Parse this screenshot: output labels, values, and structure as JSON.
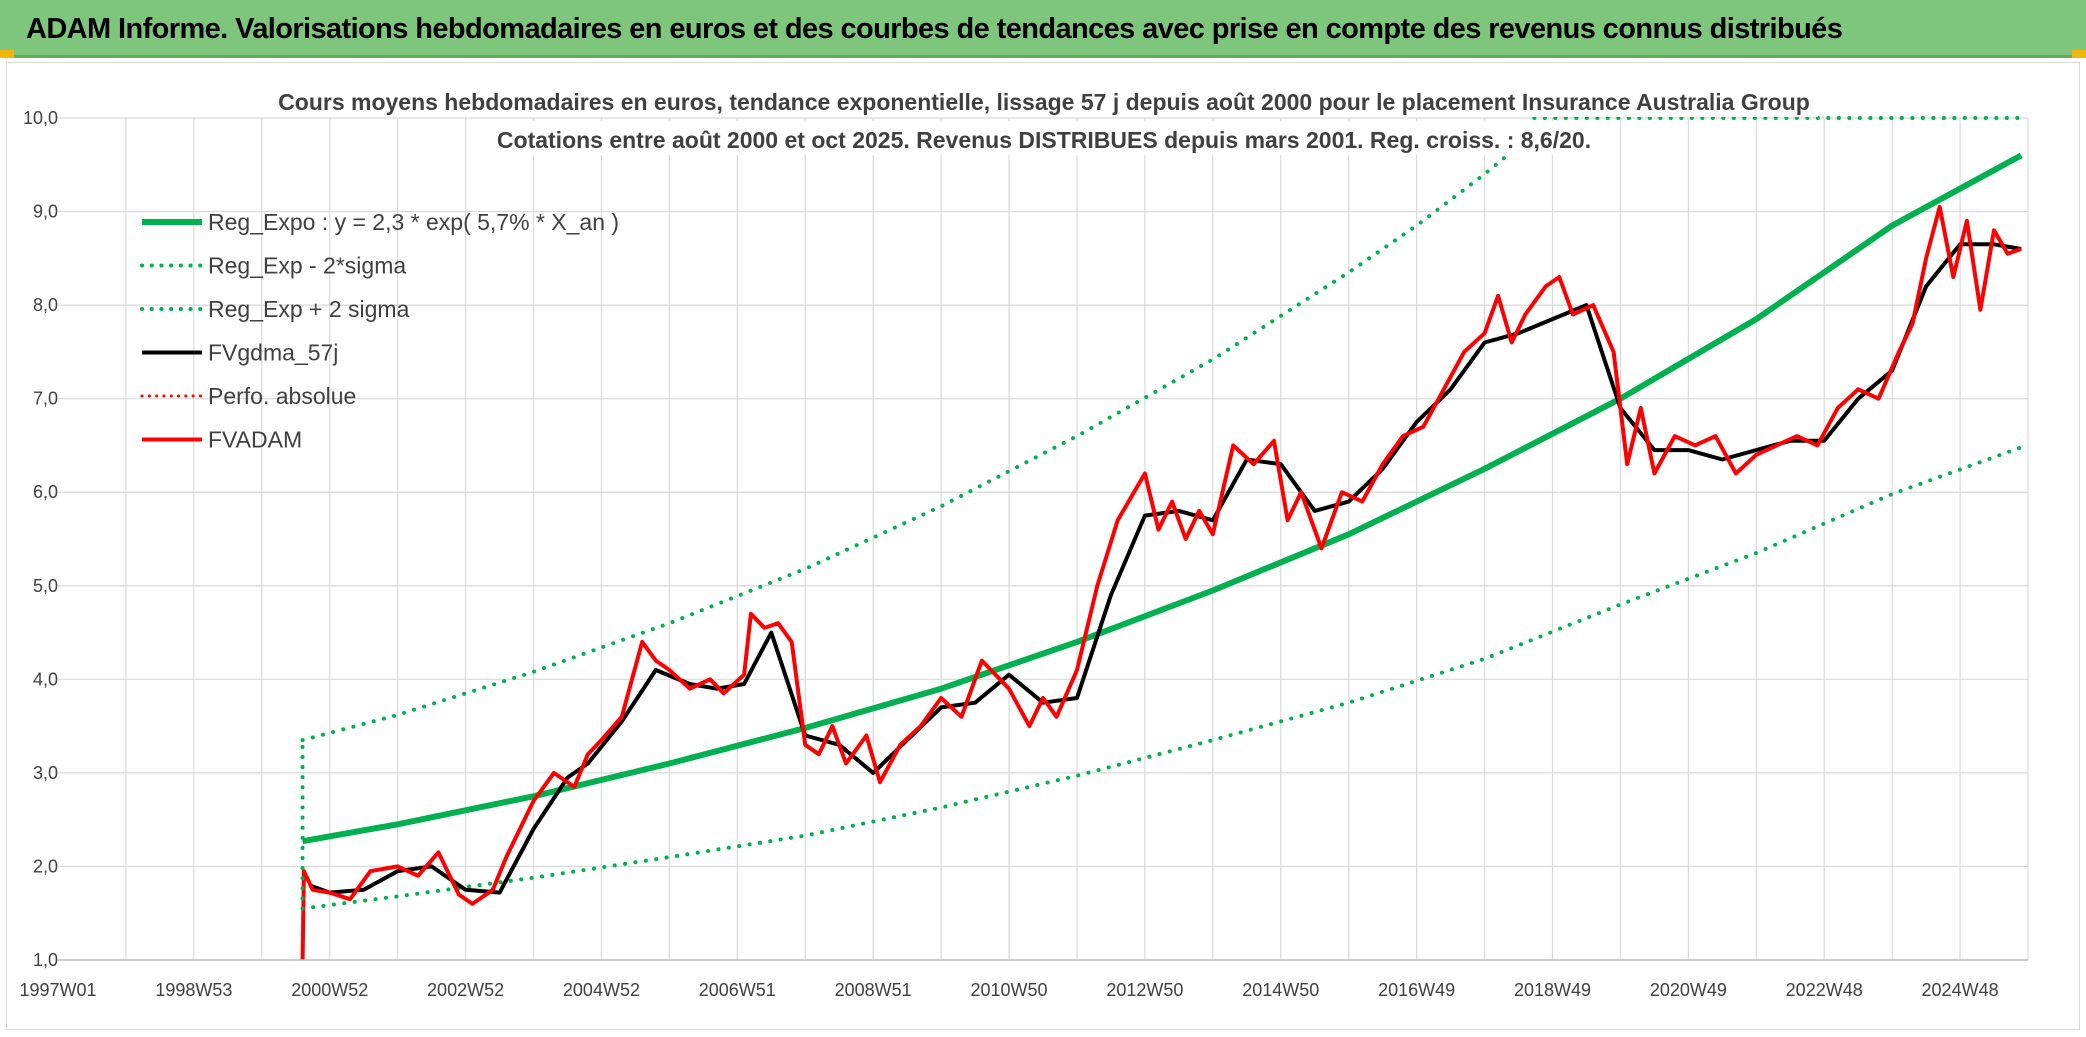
{
  "header": {
    "banner_title": "ADAM Informe. Valorisations hebdomadaires en euros et des courbes de tendances avec prise en compte des revenus connus distribués"
  },
  "colors": {
    "banner_bg": "#7dc67b",
    "reg_green": "#00b050",
    "fvadam_red": "#ff0000",
    "fvgdma_black": "#000000",
    "grid": "#d9d9d9"
  },
  "chart_data": {
    "type": "line",
    "title_lines": [
      "Cours moyens hebdomadaires en euros, tendance exponentielle, lissage 57 j depuis août 2000 pour le placement Insurance Australia Group",
      "Cotations entre août 2000 et oct 2025. Revenus DISTRIBUES depuis mars 2001. Reg. croiss. : 8,6/20."
    ],
    "x_tick_labels": [
      "1997W01",
      "1998W53",
      "2000W52",
      "2002W52",
      "2004W52",
      "2006W51",
      "2008W51",
      "2010W50",
      "2012W50",
      "2014W50",
      "2016W49",
      "2018W49",
      "2020W49",
      "2022W48",
      "2024W48"
    ],
    "x_tick_years": [
      1997.0,
      1999.0,
      2001.0,
      2003.0,
      2005.0,
      2007.0,
      2009.0,
      2011.0,
      2013.0,
      2015.0,
      2017.0,
      2019.0,
      2021.0,
      2023.0,
      2025.0
    ],
    "xlim": [
      1997.0,
      2026.0
    ],
    "y_tick_labels": [
      "1,0",
      "2,0",
      "3,0",
      "4,0",
      "5,0",
      "6,0",
      "7,0",
      "8,0",
      "9,0",
      "10,0"
    ],
    "y_tick_values": [
      1,
      2,
      3,
      4,
      5,
      6,
      7,
      8,
      9,
      10
    ],
    "ylim": [
      1,
      10
    ],
    "grid": true,
    "legend_position": "top-left",
    "legend": [
      {
        "label": "Reg_Expo : y = 2,3 * exp( 5,7% *  X_an )",
        "color": "#00b050",
        "style": "solid",
        "width": 6
      },
      {
        "label": "Reg_Exp - 2*sigma",
        "color": "#00b050",
        "style": "dotted",
        "width": 4
      },
      {
        "label": "Reg_Exp + 2 sigma",
        "color": "#00b050",
        "style": "dotted",
        "width": 4
      },
      {
        "label": "FVgdma_57j",
        "color": "#000000",
        "style": "solid",
        "width": 4
      },
      {
        "label": "Perfo. absolue",
        "color": "#ff0000",
        "style": "dotted",
        "width": 3
      },
      {
        "label": "FVADAM",
        "color": "#ff0000",
        "style": "solid",
        "width": 4
      }
    ],
    "series": [
      {
        "name": "Reg_Expo : y = 2,3 * exp( 5,7% *  X_an )",
        "color": "#00b050",
        "style": "solid",
        "x": [
          2000.6,
          2002.0,
          2004.0,
          2006.0,
          2008.0,
          2010.0,
          2012.0,
          2014.0,
          2016.0,
          2018.0,
          2020.0,
          2022.0,
          2024.0,
          2025.9
        ],
        "y": [
          2.27,
          2.45,
          2.75,
          3.1,
          3.48,
          3.9,
          4.4,
          4.95,
          5.55,
          6.25,
          7.0,
          7.85,
          8.85,
          9.6
        ]
      },
      {
        "name": "Reg_Exp - 2*sigma",
        "color": "#00b050",
        "style": "dotted",
        "x": [
          2000.6,
          2002.0,
          2004.0,
          2006.0,
          2008.0,
          2010.0,
          2012.0,
          2014.0,
          2016.0,
          2018.0,
          2020.0,
          2022.0,
          2024.0,
          2025.9
        ],
        "y": [
          1.55,
          1.68,
          1.88,
          2.1,
          2.33,
          2.63,
          2.97,
          3.35,
          3.75,
          4.22,
          4.8,
          5.35,
          5.98,
          6.48
        ]
      },
      {
        "name": "Reg_Exp + 2 sigma",
        "color": "#00b050",
        "style": "dotted",
        "x": [
          2000.6,
          2002.0,
          2004.0,
          2006.0,
          2008.0,
          2010.0,
          2012.0,
          2014.0,
          2016.0,
          2017.0,
          2018.0,
          2018.5,
          2018.7,
          2020.0,
          2022.0,
          2024.0,
          2025.9
        ],
        "y": [
          3.35,
          3.62,
          4.08,
          4.6,
          5.18,
          5.85,
          6.6,
          7.42,
          8.35,
          8.85,
          9.4,
          9.7,
          10.0,
          10.0,
          10.0,
          10.0,
          10.0
        ]
      },
      {
        "name": "FVgdma_57j",
        "color": "#000000",
        "style": "solid",
        "x": [
          2000.7,
          2001.0,
          2001.5,
          2002.0,
          2002.5,
          2003.0,
          2003.5,
          2004.0,
          2004.5,
          2004.8,
          2005.3,
          2005.8,
          2006.3,
          2006.7,
          2007.1,
          2007.5,
          2008.0,
          2008.5,
          2009.0,
          2009.5,
          2010.0,
          2010.5,
          2011.0,
          2011.5,
          2012.0,
          2012.5,
          2013.0,
          2013.5,
          2014.0,
          2014.5,
          2015.0,
          2015.5,
          2016.0,
          2016.5,
          2017.0,
          2017.5,
          2018.0,
          2018.5,
          2019.0,
          2019.5,
          2020.0,
          2020.5,
          2021.0,
          2021.5,
          2022.0,
          2022.5,
          2023.0,
          2023.5,
          2024.0,
          2024.5,
          2025.0,
          2025.5,
          2025.9
        ],
        "y": [
          1.8,
          1.72,
          1.75,
          1.95,
          2.0,
          1.75,
          1.72,
          2.4,
          2.95,
          3.1,
          3.55,
          4.1,
          3.95,
          3.9,
          3.95,
          4.5,
          3.4,
          3.3,
          3.0,
          3.35,
          3.7,
          3.75,
          4.05,
          3.75,
          3.8,
          4.9,
          5.75,
          5.8,
          5.7,
          6.35,
          6.3,
          5.8,
          5.9,
          6.25,
          6.75,
          7.1,
          7.6,
          7.7,
          7.85,
          8.0,
          6.9,
          6.45,
          6.45,
          6.35,
          6.45,
          6.55,
          6.55,
          7.0,
          7.3,
          8.2,
          8.65,
          8.65,
          8.6
        ]
      },
      {
        "name": "FVADAM",
        "color": "#ff0000",
        "style": "solid",
        "x": [
          2000.6,
          2000.62,
          2000.75,
          2001.0,
          2001.3,
          2001.6,
          2002.0,
          2002.3,
          2002.6,
          2002.9,
          2003.1,
          2003.4,
          2003.6,
          2004.0,
          2004.3,
          2004.6,
          2004.8,
          2005.0,
          2005.3,
          2005.6,
          2005.8,
          2006.0,
          2006.3,
          2006.6,
          2006.8,
          2007.1,
          2007.2,
          2007.4,
          2007.6,
          2007.8,
          2008.0,
          2008.2,
          2008.4,
          2008.6,
          2008.9,
          2009.1,
          2009.4,
          2009.7,
          2010.0,
          2010.3,
          2010.6,
          2011.0,
          2011.3,
          2011.5,
          2011.7,
          2012.0,
          2012.3,
          2012.6,
          2013.0,
          2013.2,
          2013.4,
          2013.6,
          2013.8,
          2014.0,
          2014.3,
          2014.6,
          2014.9,
          2015.1,
          2015.3,
          2015.6,
          2015.9,
          2016.2,
          2016.5,
          2016.8,
          2017.1,
          2017.4,
          2017.7,
          2018.0,
          2018.2,
          2018.4,
          2018.6,
          2018.9,
          2019.1,
          2019.3,
          2019.6,
          2019.9,
          2020.1,
          2020.3,
          2020.5,
          2020.8,
          2021.1,
          2021.4,
          2021.7,
          2022.0,
          2022.3,
          2022.6,
          2022.9,
          2023.2,
          2023.5,
          2023.8,
          2024.1,
          2024.3,
          2024.5,
          2024.7,
          2024.9,
          2025.1,
          2025.3,
          2025.5,
          2025.7,
          2025.9
        ],
        "y": [
          1.0,
          1.95,
          1.75,
          1.72,
          1.65,
          1.95,
          2.0,
          1.9,
          2.15,
          1.7,
          1.6,
          1.75,
          2.1,
          2.7,
          3.0,
          2.85,
          3.2,
          3.35,
          3.6,
          4.4,
          4.2,
          4.1,
          3.9,
          4.0,
          3.85,
          4.05,
          4.7,
          4.55,
          4.6,
          4.4,
          3.3,
          3.2,
          3.5,
          3.1,
          3.4,
          2.9,
          3.3,
          3.5,
          3.8,
          3.6,
          4.2,
          3.9,
          3.5,
          3.8,
          3.6,
          4.1,
          5.0,
          5.7,
          6.2,
          5.6,
          5.9,
          5.5,
          5.8,
          5.55,
          6.5,
          6.3,
          6.55,
          5.7,
          6.0,
          5.4,
          6.0,
          5.9,
          6.3,
          6.6,
          6.7,
          7.1,
          7.5,
          7.7,
          8.1,
          7.6,
          7.9,
          8.2,
          8.3,
          7.9,
          8.0,
          7.5,
          6.3,
          6.9,
          6.2,
          6.6,
          6.5,
          6.6,
          6.2,
          6.4,
          6.5,
          6.6,
          6.5,
          6.9,
          7.1,
          7.0,
          7.5,
          7.8,
          8.5,
          9.05,
          8.3,
          8.9,
          7.95,
          8.8,
          8.55,
          8.6
        ]
      }
    ]
  }
}
